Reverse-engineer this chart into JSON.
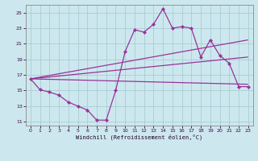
{
  "xlabel": "Windchill (Refroidissement éolien,°C)",
  "xlim": [
    -0.5,
    23.5
  ],
  "ylim": [
    10.5,
    26.0
  ],
  "xticks": [
    0,
    1,
    2,
    3,
    4,
    5,
    6,
    7,
    8,
    9,
    10,
    11,
    12,
    13,
    14,
    15,
    16,
    17,
    18,
    19,
    20,
    21,
    22,
    23
  ],
  "yticks": [
    11,
    13,
    15,
    17,
    19,
    21,
    23,
    25
  ],
  "background_color": "#cce8ee",
  "grid_color": "#aaccd4",
  "line_color": "#993399",
  "main_series": {
    "x": [
      0,
      1,
      2,
      3,
      4,
      5,
      6,
      7,
      8,
      9,
      10,
      11,
      12,
      13,
      14,
      15,
      16,
      17,
      18,
      19,
      20,
      21,
      22,
      23
    ],
    "y": [
      16.5,
      15.1,
      14.8,
      14.4,
      13.5,
      13.0,
      12.5,
      11.2,
      11.2,
      15.0,
      20.0,
      22.8,
      22.5,
      23.5,
      25.5,
      23.0,
      23.2,
      23.0,
      19.3,
      21.5,
      19.5,
      18.5,
      15.5,
      15.5
    ]
  },
  "trend_lines": [
    {
      "x": [
        0,
        23
      ],
      "y": [
        16.5,
        15.8
      ]
    },
    {
      "x": [
        0,
        23
      ],
      "y": [
        16.5,
        19.3
      ]
    },
    {
      "x": [
        0,
        23
      ],
      "y": [
        16.5,
        21.5
      ]
    }
  ]
}
